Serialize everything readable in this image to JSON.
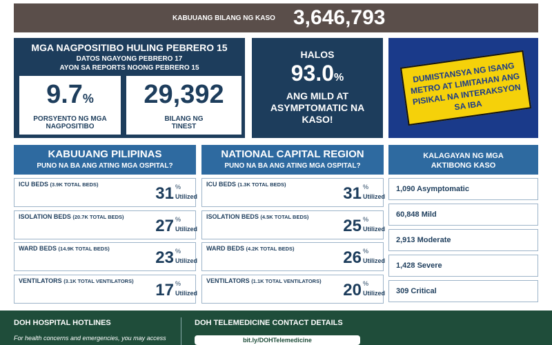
{
  "top": {
    "label": "KABUUANG BILANG NG KASO",
    "value": "3,646,793"
  },
  "positivity": {
    "title": "MGA NAGPOSITIBO HULING PEBRERO 15",
    "line1": "DATOS NGAYONG PEBRERO 17",
    "line2": "AYON SA REPORTS NOONG PEBRERO 15",
    "rate": 9.7,
    "rate_unit": "%",
    "rate_label": "PORSYENTO NG MGA NAGPOSITIBO",
    "tested": "29,392",
    "tested_label": "BILANG NG TINEST"
  },
  "mild": {
    "pre": "HALOS",
    "value": 93.0,
    "value_label": "93.0",
    "unit": "%",
    "text": "ANG MILD AT ASYMPTOMATIC NA KASO!"
  },
  "banner": {
    "text": "DUMISTANSYA NG ISANG METRO AT LIMITAHAN ANG PISIKAL NA INTERAKSYON SA IBA"
  },
  "unit": "%",
  "utilized": "Utilized",
  "hospitals": [
    {
      "title": "KABUUANG PILIPINAS",
      "subtitle": "PUNO NA BA ANG ATING MGA OSPITAL?",
      "rows": [
        {
          "label": "ICU BEDS",
          "detail": "(3.9K TOTAL BEDS)",
          "value": 31
        },
        {
          "label": "ISOLATION BEDS",
          "detail": "(20.7K TOTAL BEDS)",
          "value": 27
        },
        {
          "label": "WARD BEDS",
          "detail": "(14.9K TOTAL BEDS)",
          "value": 23
        },
        {
          "label": "VENTILATORS",
          "detail": "(3.1K TOTAL VENTILATORS)",
          "value": 17
        }
      ]
    },
    {
      "title": "NATIONAL CAPITAL REGION",
      "subtitle": "PUNO NA BA ANG ATING MGA OSPITAL?",
      "rows": [
        {
          "label": "ICU BEDS",
          "detail": "(1.3K TOTAL BEDS)",
          "value": 31
        },
        {
          "label": "ISOLATION BEDS",
          "detail": "(4.5K TOTAL BEDS)",
          "value": 25
        },
        {
          "label": "WARD BEDS",
          "detail": "(4.2K TOTAL BEDS)",
          "value": 26
        },
        {
          "label": "VENTILATORS",
          "detail": "(1.1K TOTAL VENTILATORS)",
          "value": 20
        }
      ]
    }
  ],
  "status": {
    "title": "KALAGAYAN NG MGA AKTIBONG KASO",
    "items": [
      "1,090 Asymptomatic",
      "60,848 Mild",
      "2,913 Moderate",
      "1,428 Severe",
      "309 Critical"
    ]
  },
  "footer": {
    "hotlines_title": "DOH HOSPITAL HOTLINES",
    "hotlines_text": "For health concerns and emergencies, you may access",
    "tele_title": "DOH TELEMEDICINE CONTACT DETAILS",
    "tele_link": "bit.ly/DOHTelemedicine"
  }
}
